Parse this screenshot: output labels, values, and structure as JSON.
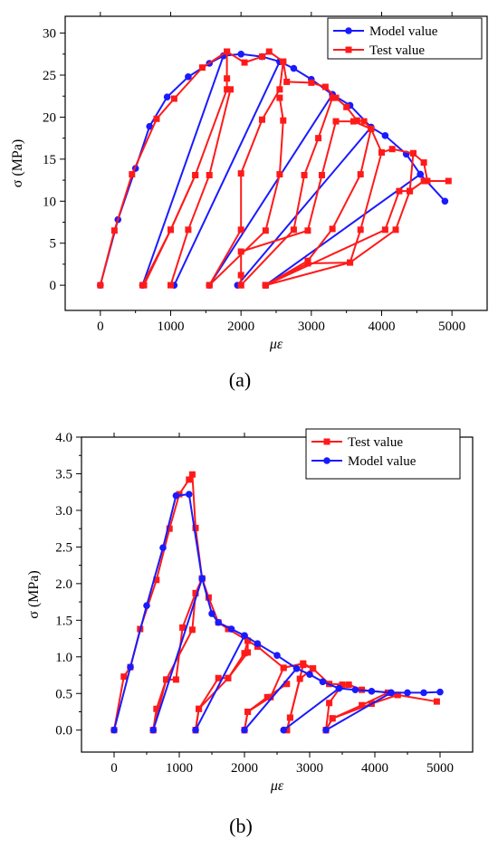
{
  "colors": {
    "model": "#1a1aff",
    "test": "#ff1a1a",
    "axis": "#000000"
  },
  "chart_data": [
    {
      "panel_label": "(a)",
      "type": "line",
      "xlabel": "με",
      "ylabel": "σ (MPa)",
      "xlim": [
        -500,
        5500
      ],
      "ylim": [
        -3,
        32
      ],
      "xticks": [
        0,
        1000,
        2000,
        3000,
        4000,
        5000
      ],
      "yticks": [
        0,
        5,
        10,
        15,
        20,
        25,
        30
      ],
      "x_tick_labels": [
        "0",
        "1000",
        "2000",
        "3000",
        "4000",
        "5000"
      ],
      "y_tick_labels": [
        "0",
        "5",
        "10",
        "15",
        "20",
        "25",
        "30"
      ],
      "legend": {
        "position": "top-right",
        "entries": [
          "Model value",
          "Test value"
        ]
      },
      "series": [
        {
          "name": "Model value",
          "color": "#1a1aff",
          "marker": "circle",
          "segments": [
            [
              [
                0,
                0
              ],
              [
                250,
                7.8
              ],
              [
                500,
                13.9
              ],
              [
                700,
                18.9
              ],
              [
                950,
                22.4
              ],
              [
                1250,
                24.8
              ],
              [
                1550,
                26.4
              ],
              [
                1750,
                27.3
              ],
              [
                2000,
                27.5
              ],
              [
                2300,
                27.2
              ],
              [
                2550,
                26.6
              ],
              [
                2750,
                25.8
              ],
              [
                3000,
                24.5
              ],
              [
                3300,
                22.7
              ],
              [
                3550,
                21.4
              ],
              [
                3850,
                18.8
              ],
              [
                4050,
                17.8
              ],
              [
                4350,
                15.6
              ],
              [
                4550,
                13.2
              ],
              [
                4900,
                10
              ]
            ],
            [
              [
                600,
                0
              ],
              [
                1750,
                27.3
              ]
            ],
            [
              [
                1050,
                0
              ],
              [
                2550,
                26.6
              ]
            ],
            [
              [
                1550,
                0
              ],
              [
                3300,
                22.7
              ]
            ],
            [
              [
                1950,
                0
              ],
              [
                3850,
                18.8
              ]
            ],
            [
              [
                2350,
                0
              ],
              [
                4550,
                13.2
              ]
            ]
          ]
        },
        {
          "name": "Test value",
          "color": "#ff1a1a",
          "marker": "square",
          "segments": [
            [
              [
                0,
                0
              ],
              [
                200,
                6.5
              ],
              [
                450,
                13.2
              ],
              [
                800,
                19.8
              ],
              [
                1050,
                22.2
              ],
              [
                1450,
                25.9
              ],
              [
                1800,
                27.8
              ]
            ],
            [
              [
                620,
                0
              ],
              [
                1000,
                6.6
              ],
              [
                1350,
                13.1
              ],
              [
                1800,
                23.3
              ],
              [
                1800,
                24.6
              ],
              [
                1800,
                27.8
              ],
              [
                2050,
                26.5
              ],
              [
                2300,
                27.2
              ],
              [
                2400,
                27.8
              ],
              [
                2600,
                26.6
              ],
              [
                2650,
                24.2
              ],
              [
                3000,
                24.1
              ],
              [
                3200,
                23.6
              ],
              [
                3350,
                22.3
              ],
              [
                3500,
                21.2
              ],
              [
                3650,
                19.6
              ],
              [
                3750,
                19.5
              ],
              [
                3850,
                18.6
              ],
              [
                4000,
                15.8
              ],
              [
                4150,
                16.2
              ],
              [
                4450,
                15.7
              ],
              [
                4600,
                14.6
              ],
              [
                4650,
                12.4
              ],
              [
                4950,
                12.4
              ]
            ],
            [
              [
                1000,
                0
              ],
              [
                1250,
                6.6
              ],
              [
                1550,
                13.1
              ],
              [
                1850,
                23.3
              ]
            ],
            [
              [
                600,
                0
              ],
              [
                1000,
                6.6
              ],
              [
                1350,
                13.1
              ]
            ],
            [
              [
                1550,
                0
              ],
              [
                2000,
                6.6
              ],
              [
                2000,
                13.3
              ],
              [
                2300,
                19.7
              ],
              [
                2550,
                23.3
              ],
              [
                2600,
                26.6
              ]
            ],
            [
              [
                1550,
                0
              ],
              [
                2350,
                6.5
              ],
              [
                2550,
                13.2
              ],
              [
                2600,
                19.6
              ],
              [
                2550,
                22.3
              ]
            ],
            [
              [
                2000,
                0
              ],
              [
                2750,
                6.6
              ],
              [
                2900,
                13.1
              ],
              [
                3100,
                17.5
              ],
              [
                3300,
                22.3
              ]
            ],
            [
              [
                2000,
                0
              ],
              [
                2000,
                1.2
              ],
              [
                2000,
                4
              ],
              [
                2950,
                6.5
              ],
              [
                3150,
                13.1
              ],
              [
                3350,
                19.5
              ],
              [
                3600,
                19.5
              ],
              [
                3850,
                18.6
              ]
            ],
            [
              [
                2350,
                0
              ],
              [
                2950,
                2.9
              ],
              [
                3300,
                6.7
              ],
              [
                3700,
                13.2
              ],
              [
                3850,
                18.6
              ]
            ],
            [
              [
                2350,
                0
              ],
              [
                2950,
                2.6
              ],
              [
                3550,
                2.7
              ],
              [
                3700,
                6.6
              ],
              [
                4000,
                15.8
              ]
            ],
            [
              [
                2350,
                0
              ],
              [
                3550,
                2.7
              ],
              [
                4200,
                6.6
              ],
              [
                4400,
                11.2
              ],
              [
                4450,
                15.7
              ]
            ],
            [
              [
                2350,
                0
              ],
              [
                4050,
                6.6
              ],
              [
                4250,
                11.2
              ],
              [
                4400,
                11.2
              ],
              [
                4600,
                12.4
              ]
            ]
          ]
        }
      ]
    },
    {
      "panel_label": "(b)",
      "type": "line",
      "xlabel": "με",
      "ylabel": "σ (MPa)",
      "xlim": [
        -500,
        5500
      ],
      "ylim": [
        -0.3,
        4.0
      ],
      "xticks": [
        0,
        1000,
        2000,
        3000,
        4000,
        5000
      ],
      "yticks": [
        0,
        0.5,
        1.0,
        1.5,
        2.0,
        2.5,
        3.0,
        3.5,
        4.0
      ],
      "x_tick_labels": [
        "0",
        "1000",
        "2000",
        "3000",
        "4000",
        "5000"
      ],
      "y_tick_labels": [
        "0.0",
        "0.5",
        "1.0",
        "1.5",
        "2.0",
        "2.5",
        "3.0",
        "3.5",
        "4.0"
      ],
      "legend": {
        "position": "top-right",
        "entries": [
          "Test value",
          "Model value"
        ]
      },
      "series": [
        {
          "name": "Test value",
          "color": "#ff1a1a",
          "marker": "square",
          "segments": [
            [
              [
                0,
                0
              ],
              [
                150,
                0.73
              ],
              [
                250,
                0.86
              ],
              [
                400,
                1.38
              ],
              [
                650,
                2.05
              ],
              [
                850,
                2.75
              ],
              [
                1000,
                3.22
              ],
              [
                1150,
                3.42
              ],
              [
                1200,
                3.49
              ],
              [
                1250,
                2.76
              ],
              [
                1350,
                2.07
              ],
              [
                1450,
                1.81
              ],
              [
                1600,
                1.47
              ],
              [
                1750,
                1.38
              ],
              [
                2050,
                1.22
              ],
              [
                2200,
                1.14
              ],
              [
                2600,
                0.85
              ],
              [
                2900,
                0.91
              ],
              [
                3050,
                0.84
              ],
              [
                3300,
                0.63
              ],
              [
                3600,
                0.62
              ],
              [
                3800,
                0.55
              ],
              [
                4200,
                0.51
              ],
              [
                4350,
                0.48
              ],
              [
                4950,
                0.39
              ]
            ],
            [
              [
                600,
                0
              ],
              [
                650,
                0.29
              ],
              [
                800,
                0.69
              ],
              [
                950,
                0.69
              ],
              [
                1050,
                1.4
              ],
              [
                1250,
                1.87
              ],
              [
                1350,
                2.07
              ]
            ],
            [
              [
                600,
                0
              ],
              [
                800,
                0.69
              ],
              [
                1200,
                1.37
              ],
              [
                1250,
                1.87
              ]
            ],
            [
              [
                1250,
                0
              ],
              [
                1300,
                0.29
              ],
              [
                1600,
                0.71
              ],
              [
                1750,
                0.71
              ],
              [
                2000,
                1.05
              ],
              [
                2050,
                1.22
              ]
            ],
            [
              [
                1250,
                0
              ],
              [
                1300,
                0.29
              ],
              [
                1750,
                0.71
              ],
              [
                2050,
                1.06
              ],
              [
                2050,
                1.22
              ]
            ],
            [
              [
                2000,
                0
              ],
              [
                2050,
                0.25
              ],
              [
                2400,
                0.45
              ],
              [
                2600,
                0.85
              ]
            ],
            [
              [
                2000,
                0
              ],
              [
                2050,
                0.25
              ],
              [
                2350,
                0.45
              ],
              [
                2650,
                0.63
              ]
            ],
            [
              [
                2650,
                0
              ],
              [
                2700,
                0.17
              ],
              [
                2850,
                0.7
              ],
              [
                3050,
                0.84
              ]
            ],
            [
              [
                2650,
                0
              ],
              [
                2700,
                0.17
              ],
              [
                2900,
                0.89
              ],
              [
                3050,
                0.84
              ]
            ],
            [
              [
                3250,
                0
              ],
              [
                3350,
                0.16
              ],
              [
                3800,
                0.34
              ],
              [
                4200,
                0.51
              ]
            ],
            [
              [
                3250,
                0
              ],
              [
                3350,
                0.16
              ],
              [
                3950,
                0.36
              ],
              [
                4350,
                0.48
              ]
            ],
            [
              [
                3250,
                0
              ],
              [
                3300,
                0.37
              ],
              [
                3500,
                0.62
              ]
            ]
          ]
        },
        {
          "name": "Model value",
          "color": "#1a1aff",
          "marker": "circle",
          "segments": [
            [
              [
                0,
                0
              ],
              [
                250,
                0.86
              ],
              [
                500,
                1.7
              ],
              [
                750,
                2.49
              ],
              [
                950,
                3.2
              ],
              [
                1150,
                3.22
              ],
              [
                1350,
                2.07
              ],
              [
                1500,
                1.59
              ],
              [
                1600,
                1.47
              ],
              [
                1800,
                1.38
              ],
              [
                2000,
                1.29
              ],
              [
                2200,
                1.18
              ],
              [
                2500,
                1.02
              ],
              [
                2800,
                0.84
              ],
              [
                3000,
                0.76
              ],
              [
                3200,
                0.66
              ],
              [
                3450,
                0.57
              ],
              [
                3700,
                0.55
              ],
              [
                3950,
                0.53
              ],
              [
                4250,
                0.51
              ],
              [
                4500,
                0.51
              ],
              [
                4750,
                0.51
              ],
              [
                5000,
                0.52
              ]
            ],
            [
              [
                600,
                0
              ],
              [
                1350,
                2.07
              ]
            ],
            [
              [
                1250,
                0
              ],
              [
                2000,
                1.29
              ]
            ],
            [
              [
                2000,
                0
              ],
              [
                2800,
                0.84
              ]
            ],
            [
              [
                2600,
                0
              ],
              [
                3450,
                0.57
              ]
            ],
            [
              [
                3250,
                0
              ],
              [
                4250,
                0.51
              ]
            ]
          ]
        }
      ]
    }
  ]
}
